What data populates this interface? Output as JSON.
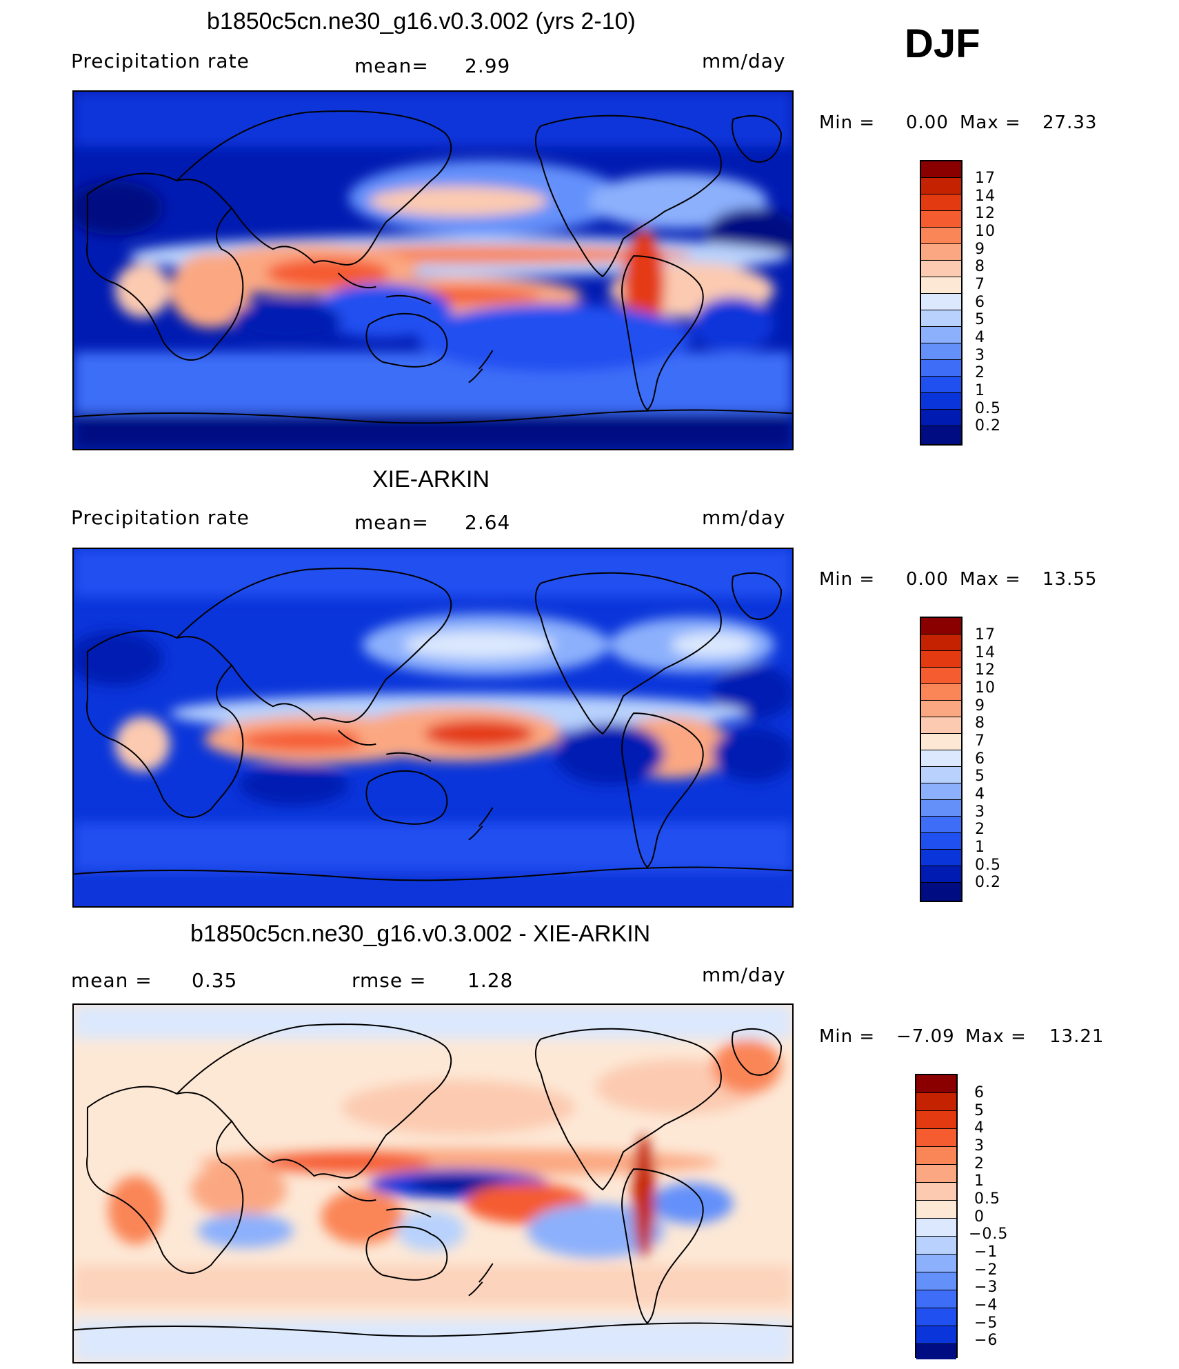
{
  "season": "DJF",
  "colors": {
    "precip": [
      "#000c82",
      "#001bb2",
      "#0a35da",
      "#2050f0",
      "#3e6ef8",
      "#6490fa",
      "#8cb0fc",
      "#b8d2fd",
      "#dbe8fd",
      "#fde8d6",
      "#fccab0",
      "#fba882",
      "#fa8556",
      "#f55c30",
      "#e43a12",
      "#c42200",
      "#8a0000"
    ],
    "diff": [
      "#000c82",
      "#001bb2",
      "#0a35da",
      "#2050f0",
      "#3e6ef8",
      "#6490fa",
      "#8cb0fc",
      "#b8d2fd",
      "#dbe8fd",
      "#fde8d6",
      "#fccab0",
      "#fba882",
      "#fa8556",
      "#f55c30",
      "#e43a12",
      "#c42200",
      "#8a0000"
    ]
  },
  "panels": [
    {
      "id": "model",
      "title": "b1850c5cn.ne30_g16.v0.3.002 (yrs 2-10)",
      "left_label": "Precipitation  rate",
      "stat_label": "mean=",
      "stat_value": "2.99",
      "units": "mm/day",
      "min_label": "Min  =",
      "min_value": "0.00",
      "max_label": "Max  =",
      "max_value": "27.33",
      "levels": [
        "17",
        "14",
        "12",
        "10",
        "9",
        "8",
        "7",
        "6",
        "5",
        "4",
        "3",
        "2",
        "1",
        "0.5",
        "0.2"
      ]
    },
    {
      "id": "obs",
      "title": "XIE-ARKIN",
      "left_label": "Precipitation  rate",
      "stat_label": "mean=",
      "stat_value": "2.64",
      "units": "mm/day",
      "min_label": "Min  =",
      "min_value": "0.00",
      "max_label": "Max  =",
      "max_value": "13.55",
      "levels": [
        "17",
        "14",
        "12",
        "10",
        "9",
        "8",
        "7",
        "6",
        "5",
        "4",
        "3",
        "2",
        "1",
        "0.5",
        "0.2"
      ]
    },
    {
      "id": "diff",
      "title": "b1850c5cn.ne30_g16.v0.3.002 - XIE-ARKIN",
      "left_label": "mean  =",
      "left_value": "0.35",
      "stat_label": "rmse  =",
      "stat_value": "1.28",
      "units": "mm/day",
      "min_label": "Min  =",
      "min_value": "−7.09",
      "max_label": "Max  =",
      "max_value": "13.21",
      "levels": [
        "6",
        "5",
        "4",
        "3",
        "2",
        "1",
        "0.5",
        "0",
        "−0.5",
        "−1",
        "−2",
        "−3",
        "−4",
        "−5",
        "−6"
      ]
    }
  ]
}
